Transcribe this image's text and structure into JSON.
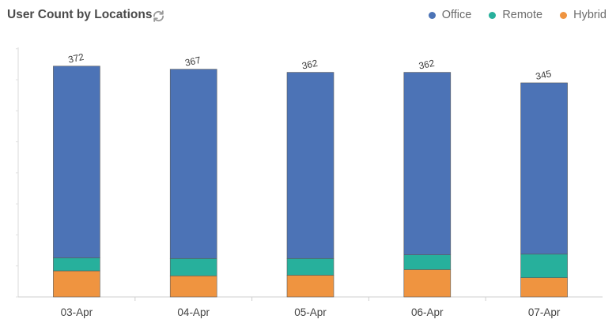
{
  "widget": {
    "title": "User Count by Locations",
    "refresh_icon": "refresh-icon"
  },
  "chart_data": {
    "type": "bar",
    "stacked": true,
    "categories": [
      "03-Apr",
      "04-Apr",
      "05-Apr",
      "06-Apr",
      "07-Apr"
    ],
    "series": [
      {
        "name": "Hybrid",
        "color": "#ef9440",
        "values": [
          42,
          34,
          35,
          44,
          31
        ]
      },
      {
        "name": "Remote",
        "color": "#27b09c",
        "values": [
          21,
          28,
          27,
          24,
          38
        ]
      },
      {
        "name": "Office",
        "color": "#4c73b6",
        "values": [
          309,
          305,
          300,
          294,
          276
        ]
      }
    ],
    "totals": [
      372,
      367,
      362,
      362,
      345
    ],
    "ylim": [
      0,
      400
    ],
    "grid": false,
    "legend": {
      "position": "top-right",
      "order": [
        "Office",
        "Remote",
        "Hybrid"
      ]
    }
  }
}
